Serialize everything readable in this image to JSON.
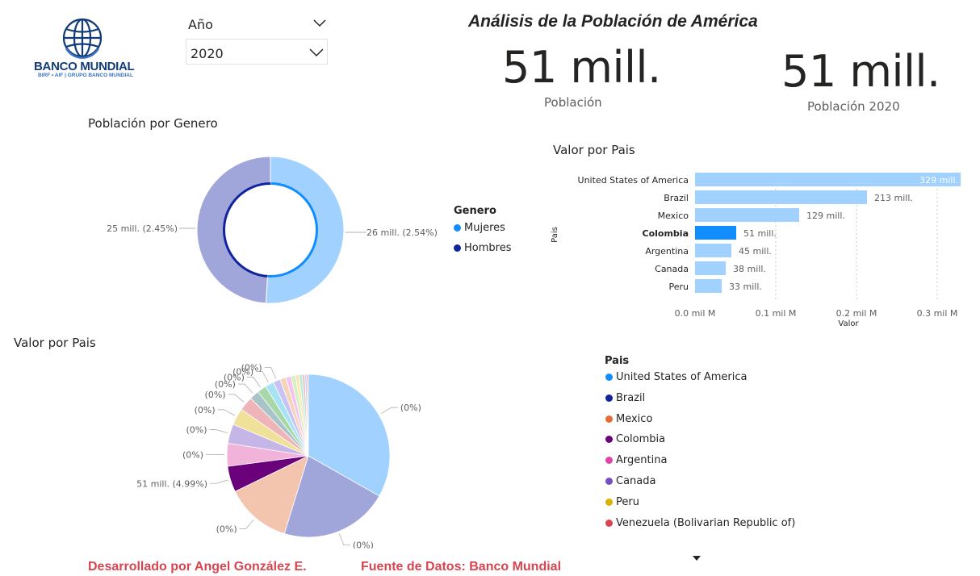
{
  "logo": {
    "name": "BANCO MUNDIAL",
    "subtitle": "BIRF • AIF | GRUPO BANCO MUNDIAL"
  },
  "slicer": {
    "title": "Año",
    "value": "2020"
  },
  "title": "Análisis de la Población de América",
  "kpis": [
    {
      "value": "51 mill.",
      "label": "Población"
    },
    {
      "value": "51 mill.",
      "label": "Población 2020"
    }
  ],
  "donut": {
    "title": "Población por Genero",
    "legend_title": "Genero",
    "label_left": "25 mill. (2.45%)",
    "label_right": "26 mill. (2.54%)"
  },
  "bar_section": {
    "title": "Valor por Pais",
    "ylabel": "Pais",
    "xlabel": "Valor"
  },
  "pie_section": {
    "title": "Valor por Pais"
  },
  "pie_legend": {
    "title": "Pais",
    "items": [
      {
        "label": "United States of America",
        "color": "#118dff"
      },
      {
        "label": "Brazil",
        "color": "#12239e"
      },
      {
        "label": "Mexico",
        "color": "#e66c37"
      },
      {
        "label": "Colombia",
        "color": "#6b007b"
      },
      {
        "label": "Argentina",
        "color": "#e044a7"
      },
      {
        "label": "Canada",
        "color": "#744ec2"
      },
      {
        "label": "Peru",
        "color": "#d9b300"
      },
      {
        "label": "Venezuela (Bolivarian Republic of)",
        "color": "#d64550"
      }
    ]
  },
  "footer": {
    "left": "Desarrollado por Angel González E.",
    "right": "Fuente de Datos: Banco Mundial"
  },
  "chart_data": [
    {
      "type": "pie",
      "subtype": "donut",
      "title": "Población por Genero",
      "categories": [
        "Mujeres",
        "Hombres"
      ],
      "values": [
        26,
        25
      ],
      "labels": [
        "26 mill. (2.54%)",
        "25 mill. (2.45%)"
      ],
      "colors": [
        "#a0d1ff",
        "#a0a6d9"
      ],
      "highlight_colors": [
        "#118dff",
        "#12239e"
      ],
      "legend": "right"
    },
    {
      "type": "bar",
      "orientation": "horizontal",
      "title": "Valor por Pais",
      "categories": [
        "United States of America",
        "Brazil",
        "Mexico",
        "Colombia",
        "Argentina",
        "Canada",
        "Peru"
      ],
      "values": [
        329,
        213,
        129,
        51,
        45,
        38,
        33
      ],
      "labels": [
        "329 mill.",
        "213 mill.",
        "129 mill.",
        "51 mill.",
        "45 mill.",
        "38 mill.",
        "33 mill."
      ],
      "highlighted": "Colombia",
      "xlabel": "Valor",
      "ylabel": "Pais",
      "xticks": [
        "0.0 mil M",
        "0.1 mil M",
        "0.2 mil M",
        "0.3 mil M"
      ],
      "xtick_values": [
        0,
        100,
        200,
        300
      ],
      "xlim": [
        0,
        330
      ],
      "color": "#a0d1ff",
      "highlight_color": "#118dff",
      "grid": true
    },
    {
      "type": "pie",
      "title": "Valor por Pais",
      "slices": [
        {
          "value": 329,
          "color": "#a0d1ff",
          "label": "(0%)"
        },
        {
          "value": 213,
          "color": "#a0a6d9",
          "label": "(0%)"
        },
        {
          "value": 129,
          "color": "#f3c4ae",
          "label": "(0%)"
        },
        {
          "value": 51,
          "color": "#6b007b",
          "label": "51 mill. (4.99%)"
        },
        {
          "value": 45,
          "color": "#f1b3d9",
          "label": "(0%)"
        },
        {
          "value": 38,
          "color": "#c6b6e8",
          "label": "(0%)"
        },
        {
          "value": 33,
          "color": "#efe19a",
          "label": "(0%)"
        },
        {
          "value": 28,
          "color": "#efb4b8",
          "label": "(0%)"
        },
        {
          "value": 19,
          "color": "#a9c4c8",
          "label": "(0%)"
        },
        {
          "value": 18,
          "color": "#a8d8a8",
          "label": "(0%)"
        },
        {
          "value": 17,
          "color": "#a7e3f4",
          "label": "(0%)"
        },
        {
          "value": 14,
          "color": "#c9c3f5",
          "label": "(0%)"
        },
        {
          "value": 12,
          "color": "#f5d4b8",
          "label": "(0%)"
        },
        {
          "value": 10,
          "color": "#f5c4ee",
          "label": "(0%)"
        },
        {
          "value": 9,
          "color": "#d6f0c4",
          "label": "(0%)"
        },
        {
          "value": 7,
          "color": "#fce7b3",
          "label": "(0%)"
        },
        {
          "value": 6,
          "color": "#b8ecd9",
          "label": "(0%)"
        },
        {
          "value": 5,
          "color": "#e6c3c3",
          "label": "(0%)"
        },
        {
          "value": 4,
          "color": "#c1d1f5",
          "label": "(0%)"
        },
        {
          "value": 3,
          "color": "#f0a5a5",
          "label": "(0%)"
        }
      ],
      "shown_labels": [
        0,
        1,
        2,
        3,
        4,
        5,
        6,
        7,
        8,
        9,
        10,
        11
      ]
    }
  ]
}
